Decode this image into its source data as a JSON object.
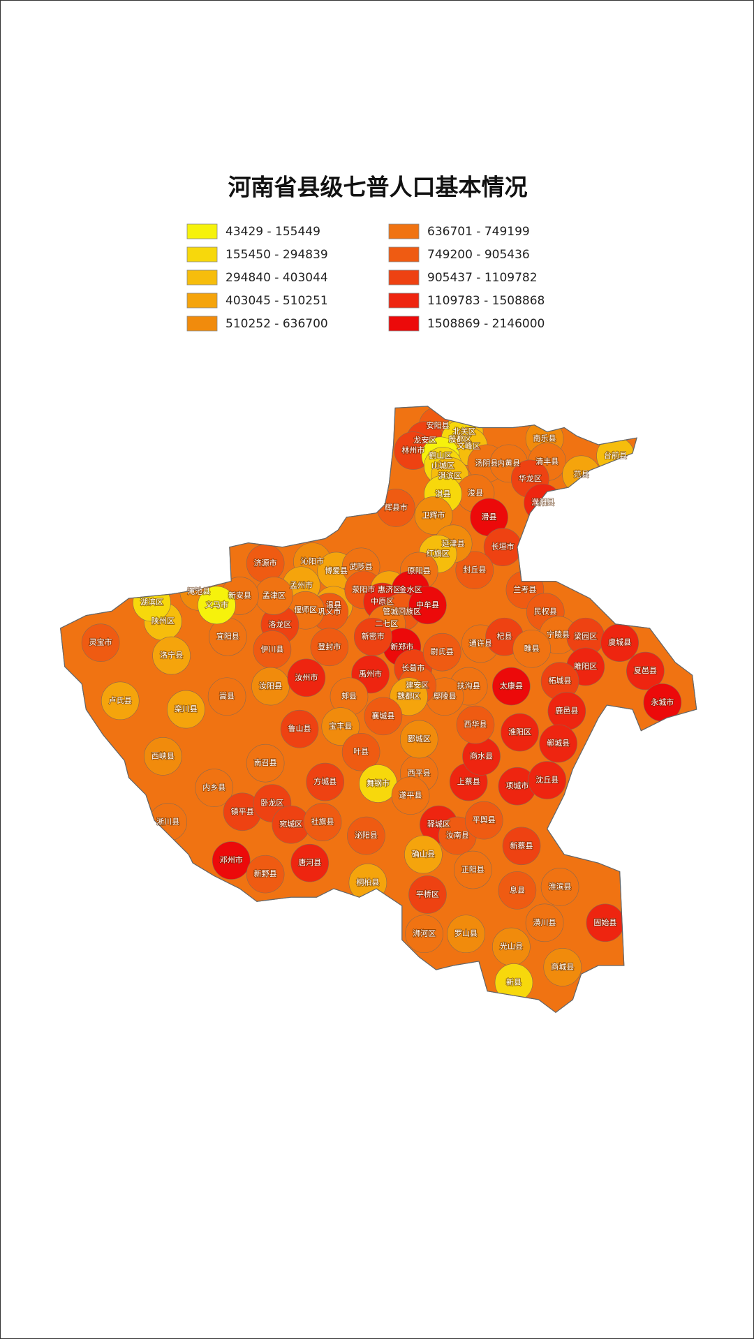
{
  "title": "河南省县级七普人口基本情况",
  "legend": [
    {
      "label": "43429 - 155449",
      "color": "#f6f20c"
    },
    {
      "label": "155450 - 294839",
      "color": "#f7d80c"
    },
    {
      "label": "294840 - 403044",
      "color": "#f6bd0c"
    },
    {
      "label": "403045 - 510251",
      "color": "#f5a40c"
    },
    {
      "label": "510252 - 636700",
      "color": "#f18b0c"
    },
    {
      "label": "636701 - 749199",
      "color": "#f07312"
    },
    {
      "label": "749200 - 905436",
      "color": "#ef5b12"
    },
    {
      "label": "905437 - 1109782",
      "color": "#ee4212"
    },
    {
      "label": "1109783 - 1508868",
      "color": "#ee2510"
    },
    {
      "label": "1508869 - 2146000",
      "color": "#ec0a0a"
    }
  ],
  "regions": [
    {
      "name": "安阳县",
      "class": 6
    },
    {
      "name": "龙安区",
      "class": 7
    },
    {
      "name": "林州市",
      "class": 7
    },
    {
      "name": "北关区",
      "class": 2
    },
    {
      "name": "殷都区",
      "class": 1
    },
    {
      "name": "文峰区",
      "class": 2
    },
    {
      "name": "鹤山区",
      "class": 0
    },
    {
      "name": "山城区",
      "class": 1
    },
    {
      "name": "汤阴县",
      "class": 5
    },
    {
      "name": "内黄县",
      "class": 5
    },
    {
      "name": "淇滨区",
      "class": 2
    },
    {
      "name": "浚县",
      "class": 5
    },
    {
      "name": "淇县",
      "class": 1
    },
    {
      "name": "南乐县",
      "class": 4
    },
    {
      "name": "清丰县",
      "class": 5
    },
    {
      "name": "范县",
      "class": 3
    },
    {
      "name": "台前县",
      "class": 2
    },
    {
      "name": "华龙区",
      "class": 7
    },
    {
      "name": "濮阳县",
      "class": 8
    },
    {
      "name": "辉县市",
      "class": 6
    },
    {
      "name": "卫辉市",
      "class": 4
    },
    {
      "name": "滑县",
      "class": 9
    },
    {
      "name": "长垣市",
      "class": 7
    },
    {
      "name": "封丘县",
      "class": 6
    },
    {
      "name": "延津县",
      "class": 4
    },
    {
      "name": "红旗区",
      "class": 2
    },
    {
      "name": "原阳县",
      "class": 5
    },
    {
      "name": "济源市",
      "class": 6
    },
    {
      "name": "沁阳市",
      "class": 4
    },
    {
      "name": "博爱县",
      "class": 3
    },
    {
      "name": "温县",
      "class": 3
    },
    {
      "name": "武陟县",
      "class": 5
    },
    {
      "name": "孟州市",
      "class": 3
    },
    {
      "name": "荥阳市",
      "class": 6
    },
    {
      "name": "惠济区",
      "class": 3
    },
    {
      "name": "金水区",
      "class": 9
    },
    {
      "name": "中原区",
      "class": 8
    },
    {
      "name": "管城回族区",
      "class": 6
    },
    {
      "name": "中牟县",
      "class": 9
    },
    {
      "name": "二七区",
      "class": 5
    },
    {
      "name": "新郑市",
      "class": 9
    },
    {
      "name": "新密市",
      "class": 7
    },
    {
      "name": "巩义市",
      "class": 6
    },
    {
      "name": "登封市",
      "class": 6
    },
    {
      "name": "偃师区",
      "class": 5
    },
    {
      "name": "洛龙区",
      "class": 7
    },
    {
      "name": "伊川县",
      "class": 6
    },
    {
      "name": "宜阳县",
      "class": 5
    },
    {
      "name": "孟津区",
      "class": 5
    },
    {
      "name": "新安县",
      "class": 5
    },
    {
      "name": "渑池县",
      "class": 4
    },
    {
      "name": "义马市",
      "class": 0
    },
    {
      "name": "陕州区",
      "class": 2
    },
    {
      "name": "湖滨区",
      "class": 1
    },
    {
      "name": "灵宝市",
      "class": 6
    },
    {
      "name": "卢氏县",
      "class": 3
    },
    {
      "name": "洛宁县",
      "class": 3
    },
    {
      "name": "栾川县",
      "class": 3
    },
    {
      "name": "嵩县",
      "class": 5
    },
    {
      "name": "汝阳县",
      "class": 4
    },
    {
      "name": "汝州市",
      "class": 8
    },
    {
      "name": "禹州市",
      "class": 8
    },
    {
      "name": "长葛市",
      "class": 7
    },
    {
      "name": "尉氏县",
      "class": 6
    },
    {
      "name": "通许县",
      "class": 5
    },
    {
      "name": "杞县",
      "class": 7
    },
    {
      "name": "兰考县",
      "class": 6
    },
    {
      "name": "民权县",
      "class": 6
    },
    {
      "name": "宁陵县",
      "class": 5
    },
    {
      "name": "睢县",
      "class": 5
    },
    {
      "name": "梁园区",
      "class": 7
    },
    {
      "name": "虞城县",
      "class": 8
    },
    {
      "name": "睢阳区",
      "class": 8
    },
    {
      "name": "夏邑县",
      "class": 8
    },
    {
      "name": "永城市",
      "class": 9
    },
    {
      "name": "柘城县",
      "class": 7
    },
    {
      "name": "太康县",
      "class": 9
    },
    {
      "name": "扶沟县",
      "class": 5
    },
    {
      "name": "鄢陵县",
      "class": 5
    },
    {
      "name": "建安区",
      "class": 6
    },
    {
      "name": "魏都区",
      "class": 3
    },
    {
      "name": "襄城县",
      "class": 6
    },
    {
      "name": "郏县",
      "class": 5
    },
    {
      "name": "宝丰县",
      "class": 4
    },
    {
      "name": "鲁山县",
      "class": 7
    },
    {
      "name": "叶县",
      "class": 6
    },
    {
      "name": "舞钢市",
      "class": 1
    },
    {
      "name": "西平县",
      "class": 5
    },
    {
      "name": "上蔡县",
      "class": 8
    },
    {
      "name": "鹿邑县",
      "class": 8
    },
    {
      "name": "郸城县",
      "class": 8
    },
    {
      "name": "淮阳区",
      "class": 8
    },
    {
      "name": "商水县",
      "class": 8
    },
    {
      "name": "项城市",
      "class": 8
    },
    {
      "name": "沈丘县",
      "class": 8
    },
    {
      "name": "西华县",
      "class": 6
    },
    {
      "name": "郾城区",
      "class": 4
    },
    {
      "name": "南召县",
      "class": 5
    },
    {
      "name": "西峡县",
      "class": 4
    },
    {
      "name": "内乡县",
      "class": 5
    },
    {
      "name": "方城县",
      "class": 7
    },
    {
      "name": "淅川县",
      "class": 5
    },
    {
      "name": "镇平县",
      "class": 7
    },
    {
      "name": "卧龙区",
      "class": 7
    },
    {
      "name": "宛城区",
      "class": 7
    },
    {
      "name": "社旗县",
      "class": 6
    },
    {
      "name": "唐河县",
      "class": 8
    },
    {
      "name": "邓州市",
      "class": 9
    },
    {
      "name": "新野县",
      "class": 6
    },
    {
      "name": "泌阳县",
      "class": 6
    },
    {
      "name": "桐柏县",
      "class": 3
    },
    {
      "name": "遂平县",
      "class": 5
    },
    {
      "name": "驿城区",
      "class": 8
    },
    {
      "name": "确山县",
      "class": 3
    },
    {
      "name": "汝南县",
      "class": 6
    },
    {
      "name": "平舆县",
      "class": 6
    },
    {
      "name": "正阳县",
      "class": 5
    },
    {
      "name": "新蔡县",
      "class": 7
    },
    {
      "name": "平桥区",
      "class": 7
    },
    {
      "name": "浉河区",
      "class": 5
    },
    {
      "name": "罗山县",
      "class": 4
    },
    {
      "name": "息县",
      "class": 6
    },
    {
      "name": "淮滨县",
      "class": 5
    },
    {
      "name": "潢川县",
      "class": 5
    },
    {
      "name": "光山县",
      "class": 4
    },
    {
      "name": "固始县",
      "class": 8
    },
    {
      "name": "商城县",
      "class": 4
    },
    {
      "name": "新县",
      "class": 1
    }
  ]
}
